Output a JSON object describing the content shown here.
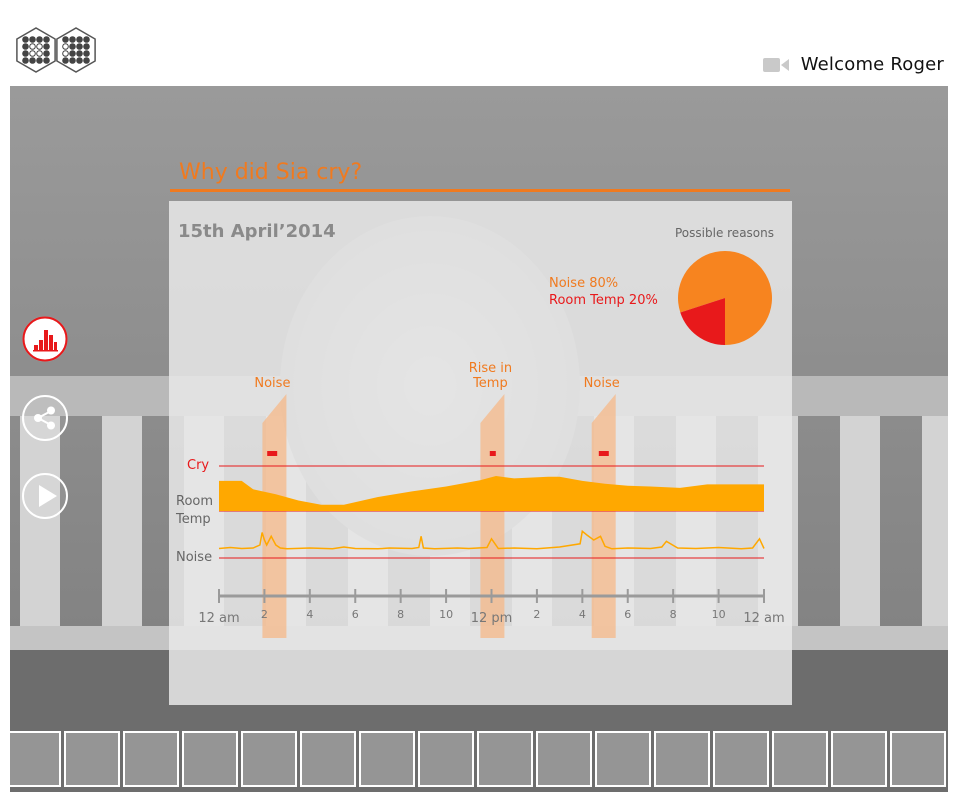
{
  "header": {
    "welcome_text": "Welcome Roger",
    "logo_icon": "hex-dots-logo",
    "camera_icon": "video-camera-icon"
  },
  "sidebar": {
    "items": [
      {
        "icon": "bar-chart-icon",
        "active": true
      },
      {
        "icon": "share-icon",
        "active": false
      },
      {
        "icon": "play-icon",
        "active": false
      }
    ]
  },
  "panel": {
    "title": "Why did Sia cry?",
    "date": "15th April’2014",
    "possible_reasons_label": "Possible reasons",
    "reasons": [
      {
        "label": "Noise 80%",
        "color": "#f07a1f"
      },
      {
        "label": "Room Temp 20%",
        "color": "#e8191b"
      }
    ]
  },
  "chart_data": {
    "type": "timeline",
    "x_tick_labels": [
      "12 am",
      "2",
      "4",
      "6",
      "8",
      "10",
      "12 pm",
      "2",
      "4",
      "6",
      "8",
      "10",
      "12 am"
    ],
    "x_range_hours": [
      0,
      24
    ],
    "rows": [
      "Cry",
      "Room Temp",
      "Noise"
    ],
    "cry_events_hours": [
      2.3,
      12.1,
      16.9
    ],
    "annotations": [
      {
        "label_lines": [
          "Noise"
        ],
        "hour": 2.0
      },
      {
        "label_lines": [
          "Rise in",
          "Temp"
        ],
        "hour": 11.6
      },
      {
        "label_lines": [
          "Noise"
        ],
        "hour": 16.5
      }
    ],
    "room_temp_series": {
      "hours": [
        0,
        1,
        1.5,
        2.5,
        3.5,
        4.5,
        5.5,
        7,
        8.5,
        10,
        11.5,
        12.2,
        13,
        14.5,
        15,
        16,
        17,
        18,
        19,
        20.3,
        21.5,
        23,
        24
      ],
      "values": [
        0.86,
        0.86,
        0.62,
        0.48,
        0.3,
        0.18,
        0.18,
        0.4,
        0.56,
        0.7,
        0.88,
        1.0,
        0.93,
        0.98,
        0.98,
        0.86,
        0.78,
        0.72,
        0.7,
        0.66,
        0.76,
        0.76,
        0.76
      ]
    },
    "noise_series": {
      "hours": [
        0,
        0.5,
        1,
        1.5,
        1.8,
        1.9,
        2.0,
        2.1,
        2.3,
        2.5,
        2.7,
        3.0,
        4,
        5,
        5.5,
        6,
        7,
        7.5,
        8.5,
        8.8,
        8.9,
        9.0,
        9.5,
        10.5,
        11,
        11.8,
        12.0,
        12.3,
        13,
        14,
        15,
        15.9,
        16.0,
        16.2,
        16.5,
        16.8,
        17.0,
        17.3,
        18,
        19,
        19.5,
        19.7,
        20.2,
        21,
        22,
        23,
        23.5,
        23.8,
        24
      ],
      "values": [
        0.06,
        0.1,
        0.06,
        0.08,
        0.2,
        0.7,
        0.4,
        0.2,
        0.55,
        0.2,
        0.08,
        0.05,
        0.08,
        0.05,
        0.12,
        0.06,
        0.05,
        0.08,
        0.06,
        0.1,
        0.55,
        0.08,
        0.05,
        0.08,
        0.06,
        0.1,
        0.45,
        0.06,
        0.08,
        0.05,
        0.12,
        0.25,
        0.75,
        0.6,
        0.4,
        0.55,
        0.15,
        0.05,
        0.08,
        0.06,
        0.12,
        0.35,
        0.08,
        0.06,
        0.1,
        0.05,
        0.08,
        0.45,
        0.06
      ]
    },
    "pie": {
      "slices": [
        {
          "label": "Noise",
          "value": 80,
          "color": "#f7841f"
        },
        {
          "label": "Room Temp",
          "value": 20,
          "color": "#e8191b"
        }
      ]
    }
  },
  "filmstrip": {
    "count": 16
  }
}
